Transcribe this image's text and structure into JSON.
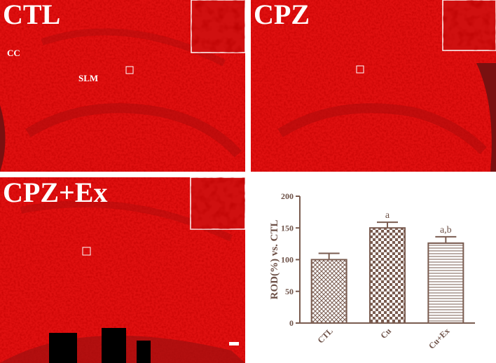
{
  "panels": [
    {
      "label": "CTL",
      "annotations": [
        "CC",
        "SLM"
      ]
    },
    {
      "label": "CPZ"
    },
    {
      "label": "CPZ+Ex"
    }
  ],
  "chart_data": {
    "type": "bar",
    "y_label": "ROD(%) vs. CTL",
    "categories": [
      "CTL",
      "Cu",
      "Cu+Ex"
    ],
    "values": [
      100,
      150,
      126
    ],
    "errors": [
      10,
      9,
      10
    ],
    "annotations": [
      null,
      "a",
      "a,b"
    ],
    "color": "#7a5c50",
    "ylim": [
      0,
      200
    ],
    "yticks": [
      0,
      50,
      100,
      150,
      200
    ]
  }
}
